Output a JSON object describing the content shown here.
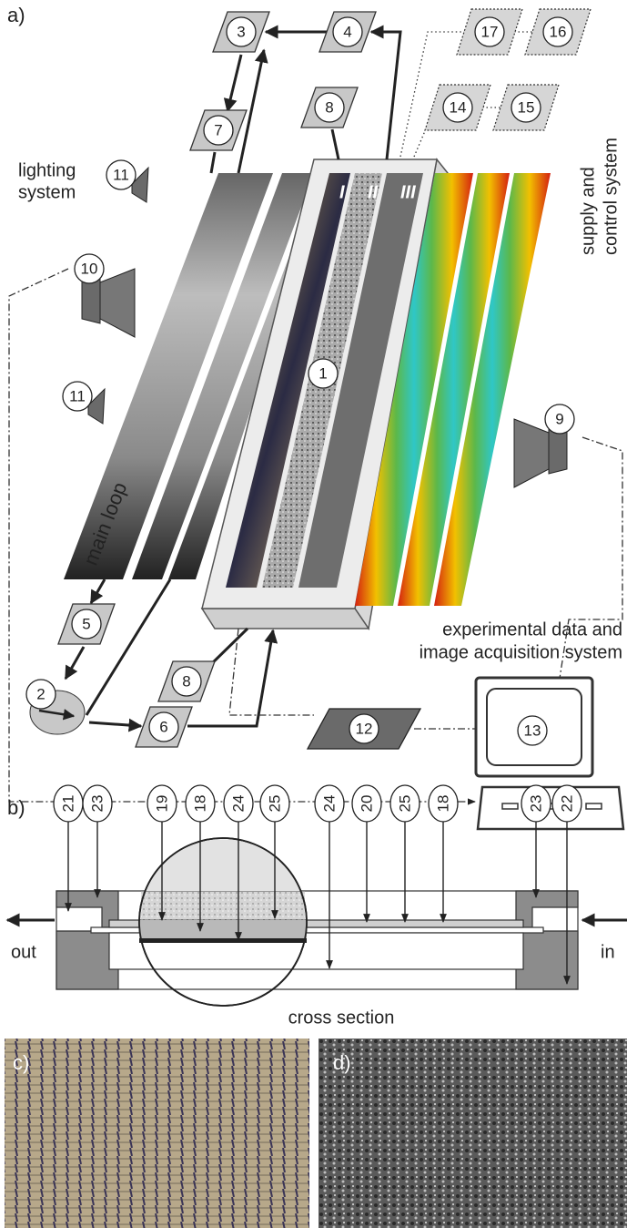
{
  "panel_a": {
    "label": "a)",
    "nodes": [
      "3",
      "4",
      "17",
      "16",
      "8",
      "14",
      "15",
      "7",
      "11",
      "10",
      "11",
      "1",
      "9",
      "5",
      "8",
      "2",
      "6",
      "12",
      "13"
    ],
    "strip_labels": [
      "I",
      "II",
      "III"
    ],
    "lighting_system": [
      "lighting",
      "system"
    ],
    "main_loop": "main loop",
    "supply_control": [
      "supply and",
      "control system"
    ],
    "acquisition": [
      "experimental data and",
      "image acquisition system"
    ]
  },
  "panel_b": {
    "label": "b)",
    "markers": [
      "21",
      "23",
      "19",
      "18",
      "24",
      "25",
      "24",
      "20",
      "25",
      "18",
      "23",
      "22"
    ],
    "out": "out",
    "in": "in",
    "cross_section": "cross section"
  },
  "panel_c": {
    "label": "c)"
  },
  "panel_d": {
    "label": "d)"
  }
}
